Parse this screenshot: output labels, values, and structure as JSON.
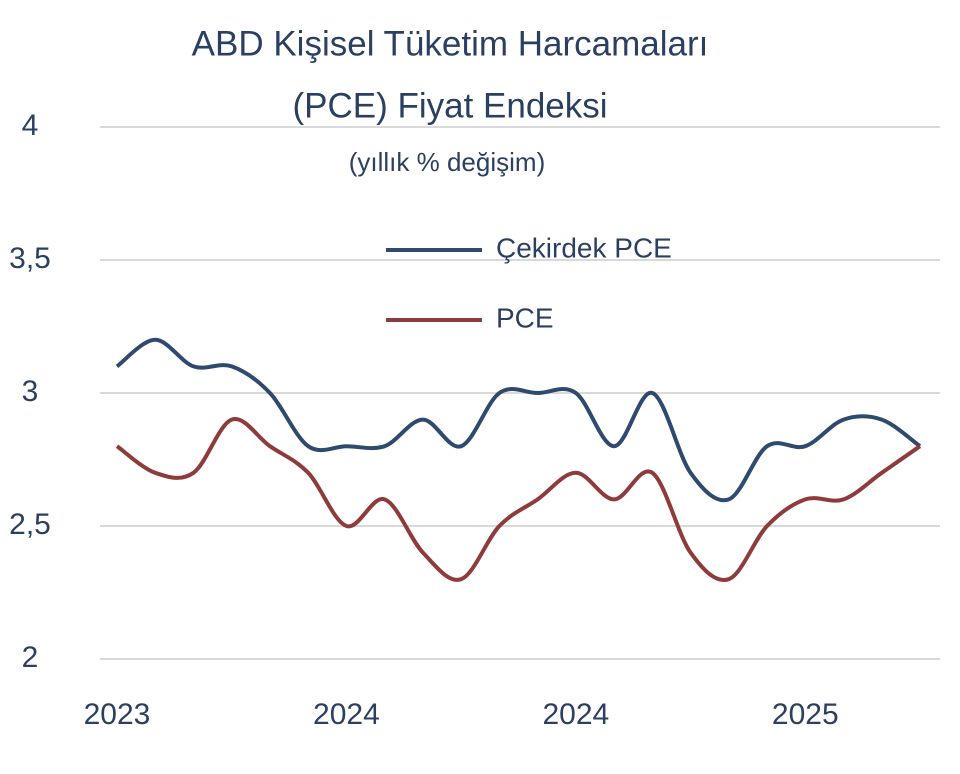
{
  "chart_data": {
    "type": "line",
    "title": [
      "ABD Kişisel Tüketim Harcamaları",
      "(PCE) Fiyat Endeksi"
    ],
    "subtitle": "(yıllık % değişim)",
    "categories": [
      "2023",
      null,
      null,
      null,
      null,
      null,
      "2024",
      null,
      null,
      null,
      null,
      null,
      "2024",
      null,
      null,
      null,
      null,
      null,
      "2025",
      null,
      null,
      null
    ],
    "series": [
      {
        "name": "Çekirdek PCE",
        "color": "#2e4a6e",
        "values": [
          3.1,
          3.2,
          3.1,
          3.1,
          3.0,
          2.8,
          2.8,
          2.8,
          2.9,
          2.8,
          3.0,
          3.0,
          3.0,
          2.8,
          3.0,
          2.7,
          2.6,
          2.8,
          2.8,
          2.9,
          2.9,
          2.8
        ]
      },
      {
        "name": "PCE",
        "color": "#8e3b3b",
        "values": [
          2.8,
          2.7,
          2.7,
          2.9,
          2.8,
          2.7,
          2.5,
          2.6,
          2.4,
          2.3,
          2.5,
          2.6,
          2.7,
          2.6,
          2.7,
          2.4,
          2.3,
          2.5,
          2.6,
          2.6,
          2.7,
          2.8
        ]
      }
    ],
    "ylim": [
      2,
      4
    ],
    "yticks": [
      2,
      {
        "value": 2.5,
        "label": "2,5"
      },
      3,
      {
        "value": 3.5,
        "label": "3,5"
      },
      4
    ],
    "grid": true
  }
}
